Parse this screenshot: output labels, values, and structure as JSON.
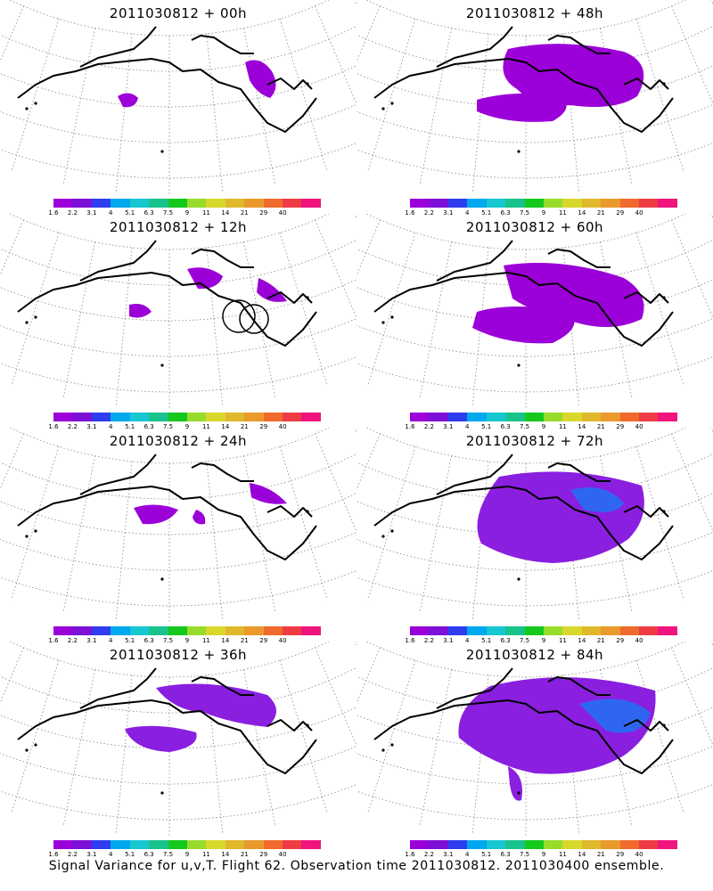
{
  "panels": [
    {
      "title": "2011030812 + 00h"
    },
    {
      "title": "2011030812 + 48h"
    },
    {
      "title": "2011030812 + 12h"
    },
    {
      "title": "2011030812 + 60h"
    },
    {
      "title": "2011030812 + 24h"
    },
    {
      "title": "2011030812 + 72h"
    },
    {
      "title": "2011030812 + 36h"
    },
    {
      "title": "2011030812 + 84h"
    }
  ],
  "legend": {
    "colors": [
      "#9b00d8",
      "#7d10d6",
      "#2f3df0",
      "#00a8ee",
      "#16c7d2",
      "#19c38c",
      "#14c81e",
      "#98dc2b",
      "#d8d82c",
      "#e0b82c",
      "#ea9a2c",
      "#ef6a2c",
      "#ef3c44",
      "#f0147c"
    ],
    "labels": [
      "1.6",
      "2.2",
      "3.1",
      "4",
      "5.1",
      "6.3",
      "7.5",
      "9",
      "11",
      "14",
      "21",
      "29",
      "40"
    ]
  },
  "footer": "Signal Variance for u,v,T. Flight 62. Observation time 2011030812. 2011030400 ensemble."
}
